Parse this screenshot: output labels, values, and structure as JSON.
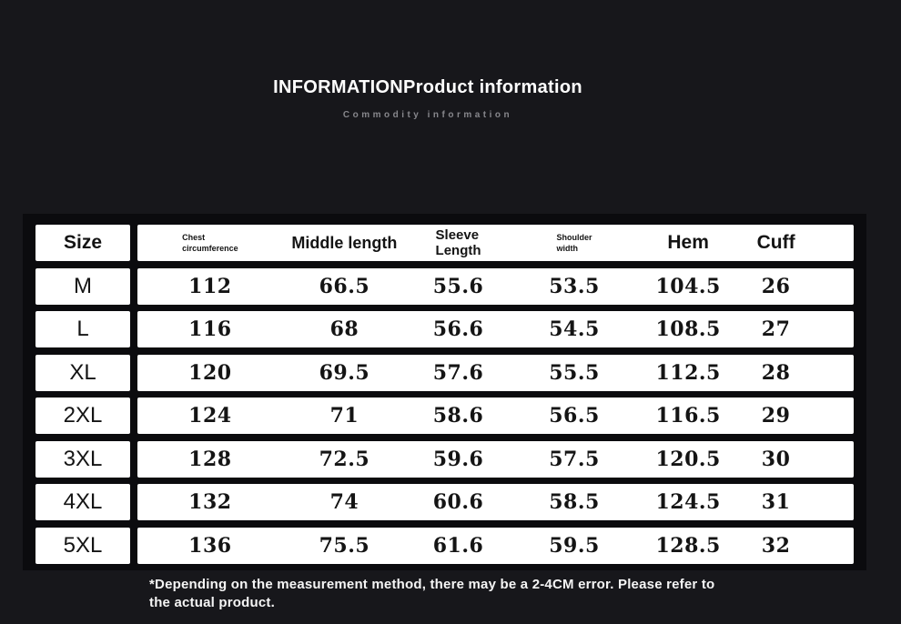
{
  "header": {
    "title": "INFORMATIONProduct information",
    "subtitle": "Commodity information"
  },
  "table": {
    "size_column_label": "Size",
    "columns": [
      {
        "name": "chest-circumference",
        "label": "Chest circumference",
        "lines": [
          "Chest",
          "circumference"
        ],
        "style": "small"
      },
      {
        "name": "middle-length",
        "label": "Middle length",
        "lines": [
          "Middle length"
        ],
        "style": "large-mid"
      },
      {
        "name": "sleeve-length",
        "label": "Sleeve Length",
        "lines": [
          "Sleeve",
          "Length"
        ],
        "style": "medium"
      },
      {
        "name": "shoulder-width",
        "label": "Shoulder width",
        "lines": [
          "Shoulder",
          "width"
        ],
        "style": "small"
      },
      {
        "name": "hem",
        "label": "Hem",
        "lines": [
          "Hem"
        ],
        "style": "large"
      },
      {
        "name": "cuff",
        "label": "Cuff",
        "lines": [
          "Cuff"
        ],
        "style": "large"
      }
    ],
    "rows": [
      {
        "size": "M",
        "values": [
          "112",
          "66.5",
          "55.6",
          "53.5",
          "104.5",
          "26"
        ]
      },
      {
        "size": "L",
        "values": [
          "116",
          "68",
          "56.6",
          "54.5",
          "108.5",
          "27"
        ]
      },
      {
        "size": "XL",
        "values": [
          "120",
          "69.5",
          "57.6",
          "55.5",
          "112.5",
          "28"
        ]
      },
      {
        "size": "2XL",
        "values": [
          "124",
          "71",
          "58.6",
          "56.5",
          "116.5",
          "29"
        ]
      },
      {
        "size": "3XL",
        "values": [
          "128",
          "72.5",
          "59.6",
          "57.5",
          "120.5",
          "30"
        ]
      },
      {
        "size": "4XL",
        "values": [
          "132",
          "74",
          "60.6",
          "58.5",
          "124.5",
          "31"
        ]
      },
      {
        "size": "5XL",
        "values": [
          "136",
          "75.5",
          "61.6",
          "59.5",
          "128.5",
          "32"
        ]
      }
    ]
  },
  "footnote": {
    "line1": "*Depending on the measurement method, there may be a 2-4CM error. Please refer to",
    "line2": "the actual product."
  },
  "colors": {
    "background": "#17171b",
    "table_backdrop": "#0b0b0e",
    "cell_background": "#ffffff",
    "table_text": "#141414",
    "title_text": "#ffffff",
    "subtitle_text": "#87878c",
    "footnote_text": "#f5f5f5"
  }
}
